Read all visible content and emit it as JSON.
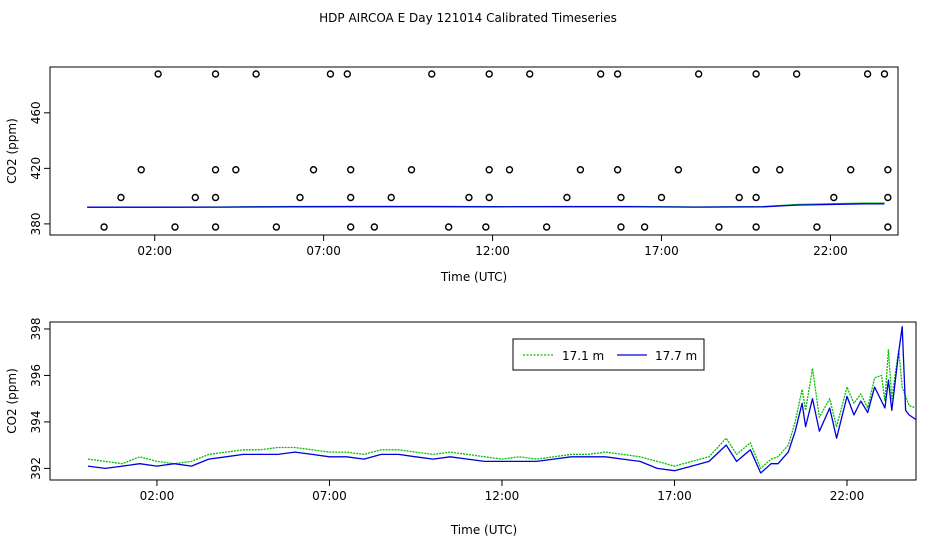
{
  "title": "HDP AIRCOA E  Day 121014  Calibrated Timeseries",
  "colors": {
    "series_17_1": "#00c000",
    "series_17_7": "#0000dd",
    "axis": "#000000"
  },
  "chart_data": [
    {
      "type": "line",
      "xlabel": "Time (UTC)",
      "ylabel": "CO2 (ppm)",
      "xlim": [
        -1.1,
        24.0
      ],
      "ylim": [
        372,
        493
      ],
      "x_ticks": [
        2,
        7,
        12,
        17,
        22
      ],
      "x_tick_labels": [
        "02:00",
        "07:00",
        "12:00",
        "17:00",
        "22:00"
      ],
      "y_ticks": [
        380,
        420,
        460
      ],
      "y_tick_labels": [
        "380",
        "420",
        "460"
      ],
      "grid": false,
      "series": [
        {
          "values": [
            [
              0.0,
              392.0
            ],
            [
              2.0,
              392.0
            ],
            [
              4.0,
              392.2
            ],
            [
              6.0,
              392.5
            ],
            [
              8.0,
              392.6
            ],
            [
              10.0,
              392.6
            ],
            [
              12.0,
              392.4
            ],
            [
              14.0,
              392.5
            ],
            [
              16.0,
              392.5
            ],
            [
              18.0,
              392.2
            ],
            [
              20.0,
              392.4
            ],
            [
              21.0,
              394.0
            ],
            [
              22.0,
              394.5
            ],
            [
              23.0,
              395.0
            ],
            [
              23.6,
              395.0
            ]
          ]
        },
        {
          "values": [
            [
              0.0,
              392.0
            ],
            [
              2.0,
              392.0
            ],
            [
              4.0,
              392.1
            ],
            [
              6.0,
              392.3
            ],
            [
              8.0,
              392.4
            ],
            [
              10.0,
              392.4
            ],
            [
              12.0,
              392.3
            ],
            [
              14.0,
              392.4
            ],
            [
              16.0,
              392.4
            ],
            [
              18.0,
              392.1
            ],
            [
              20.0,
              392.3
            ],
            [
              21.0,
              393.5
            ],
            [
              22.0,
              394.0
            ],
            [
              23.0,
              394.5
            ],
            [
              23.6,
              394.5
            ]
          ]
        }
      ],
      "markers": {
        "top": [
          2.1,
          3.8,
          5.0,
          7.2,
          7.7,
          10.2,
          11.9,
          13.1,
          15.2,
          15.7,
          18.1,
          19.8,
          21.0,
          23.1,
          23.6
        ],
        "y419": [
          1.6,
          3.8,
          4.4,
          6.7,
          7.8,
          9.6,
          11.9,
          12.5,
          14.6,
          15.7,
          17.5,
          19.8,
          20.5,
          22.6,
          23.7
        ],
        "y399": [
          1.0,
          3.2,
          3.8,
          6.3,
          7.8,
          9.0,
          11.3,
          11.9,
          14.2,
          15.8,
          17.0,
          19.3,
          19.8,
          22.1,
          23.7
        ],
        "bottom": [
          0.5,
          2.6,
          3.8,
          5.6,
          7.8,
          8.5,
          10.7,
          11.8,
          13.6,
          15.8,
          16.5,
          18.7,
          19.8,
          21.6,
          23.7
        ]
      }
    },
    {
      "type": "line",
      "xlabel": "Time (UTC)",
      "ylabel": "CO2 (ppm)",
      "xlim": [
        -1.1,
        24.0
      ],
      "ylim": [
        391.5,
        398.3
      ],
      "x_ticks": [
        2,
        7,
        12,
        17,
        22
      ],
      "x_tick_labels": [
        "02:00",
        "07:00",
        "12:00",
        "17:00",
        "22:00"
      ],
      "y_ticks": [
        392,
        394,
        396,
        398
      ],
      "y_tick_labels": [
        "392",
        "394",
        "396",
        "398"
      ],
      "grid": false,
      "legend": "top-right",
      "series": [
        {
          "name": "17.1 m",
          "values": [
            [
              0.0,
              392.4
            ],
            [
              0.5,
              392.3
            ],
            [
              1.0,
              392.2
            ],
            [
              1.5,
              392.5
            ],
            [
              2.0,
              392.3
            ],
            [
              2.5,
              392.2
            ],
            [
              3.0,
              392.3
            ],
            [
              3.5,
              392.6
            ],
            [
              4.0,
              392.7
            ],
            [
              4.5,
              392.8
            ],
            [
              5.0,
              392.8
            ],
            [
              5.5,
              392.9
            ],
            [
              6.0,
              392.9
            ],
            [
              6.5,
              392.8
            ],
            [
              7.0,
              392.7
            ],
            [
              7.5,
              392.7
            ],
            [
              8.0,
              392.6
            ],
            [
              8.5,
              392.8
            ],
            [
              9.0,
              392.8
            ],
            [
              9.5,
              392.7
            ],
            [
              10.0,
              392.6
            ],
            [
              10.5,
              392.7
            ],
            [
              11.0,
              392.6
            ],
            [
              11.5,
              392.5
            ],
            [
              12.0,
              392.4
            ],
            [
              12.5,
              392.5
            ],
            [
              13.0,
              392.4
            ],
            [
              13.5,
              392.5
            ],
            [
              14.0,
              392.6
            ],
            [
              14.5,
              392.6
            ],
            [
              15.0,
              392.7
            ],
            [
              15.5,
              392.6
            ],
            [
              16.0,
              392.5
            ],
            [
              16.5,
              392.3
            ],
            [
              17.0,
              392.1
            ],
            [
              17.5,
              392.3
            ],
            [
              18.0,
              392.5
            ],
            [
              18.5,
              393.3
            ],
            [
              18.8,
              392.6
            ],
            [
              19.2,
              393.1
            ],
            [
              19.5,
              392.0
            ],
            [
              19.8,
              392.4
            ],
            [
              20.0,
              392.5
            ],
            [
              20.3,
              393.0
            ],
            [
              20.5,
              394.0
            ],
            [
              20.7,
              395.4
            ],
            [
              20.8,
              394.5
            ],
            [
              21.0,
              396.3
            ],
            [
              21.2,
              394.2
            ],
            [
              21.5,
              395.0
            ],
            [
              21.7,
              393.8
            ],
            [
              22.0,
              395.5
            ],
            [
              22.2,
              394.8
            ],
            [
              22.4,
              395.2
            ],
            [
              22.6,
              394.6
            ],
            [
              22.8,
              395.9
            ],
            [
              23.0,
              396.0
            ],
            [
              23.1,
              394.9
            ],
            [
              23.2,
              397.1
            ],
            [
              23.3,
              395.0
            ],
            [
              23.5,
              397.1
            ],
            [
              23.6,
              395.5
            ],
            [
              23.8,
              394.7
            ],
            [
              24.0,
              394.6
            ]
          ]
        },
        {
          "name": "17.7 m",
          "values": [
            [
              0.0,
              392.1
            ],
            [
              0.5,
              392.0
            ],
            [
              1.0,
              392.1
            ],
            [
              1.5,
              392.2
            ],
            [
              2.0,
              392.1
            ],
            [
              2.5,
              392.2
            ],
            [
              3.0,
              392.1
            ],
            [
              3.5,
              392.4
            ],
            [
              4.0,
              392.5
            ],
            [
              4.5,
              392.6
            ],
            [
              5.0,
              392.6
            ],
            [
              5.5,
              392.6
            ],
            [
              6.0,
              392.7
            ],
            [
              6.5,
              392.6
            ],
            [
              7.0,
              392.5
            ],
            [
              7.5,
              392.5
            ],
            [
              8.0,
              392.4
            ],
            [
              8.5,
              392.6
            ],
            [
              9.0,
              392.6
            ],
            [
              9.5,
              392.5
            ],
            [
              10.0,
              392.4
            ],
            [
              10.5,
              392.5
            ],
            [
              11.0,
              392.4
            ],
            [
              11.5,
              392.3
            ],
            [
              12.0,
              392.3
            ],
            [
              12.5,
              392.3
            ],
            [
              13.0,
              392.3
            ],
            [
              13.5,
              392.4
            ],
            [
              14.0,
              392.5
            ],
            [
              14.5,
              392.5
            ],
            [
              15.0,
              392.5
            ],
            [
              15.5,
              392.4
            ],
            [
              16.0,
              392.3
            ],
            [
              16.5,
              392.0
            ],
            [
              17.0,
              391.9
            ],
            [
              17.5,
              392.1
            ],
            [
              18.0,
              392.3
            ],
            [
              18.5,
              393.0
            ],
            [
              18.8,
              392.3
            ],
            [
              19.2,
              392.8
            ],
            [
              19.5,
              391.8
            ],
            [
              19.8,
              392.2
            ],
            [
              20.0,
              392.2
            ],
            [
              20.3,
              392.7
            ],
            [
              20.5,
              393.6
            ],
            [
              20.7,
              394.8
            ],
            [
              20.8,
              393.8
            ],
            [
              21.0,
              395.0
            ],
            [
              21.2,
              393.6
            ],
            [
              21.5,
              394.6
            ],
            [
              21.7,
              393.3
            ],
            [
              22.0,
              395.1
            ],
            [
              22.2,
              394.3
            ],
            [
              22.4,
              394.9
            ],
            [
              22.6,
              394.4
            ],
            [
              22.8,
              395.5
            ],
            [
              23.0,
              394.9
            ],
            [
              23.1,
              394.6
            ],
            [
              23.2,
              395.8
            ],
            [
              23.3,
              394.5
            ],
            [
              23.5,
              397.0
            ],
            [
              23.6,
              398.1
            ],
            [
              23.7,
              394.5
            ],
            [
              23.8,
              394.3
            ],
            [
              24.0,
              394.1
            ]
          ]
        }
      ]
    }
  ]
}
